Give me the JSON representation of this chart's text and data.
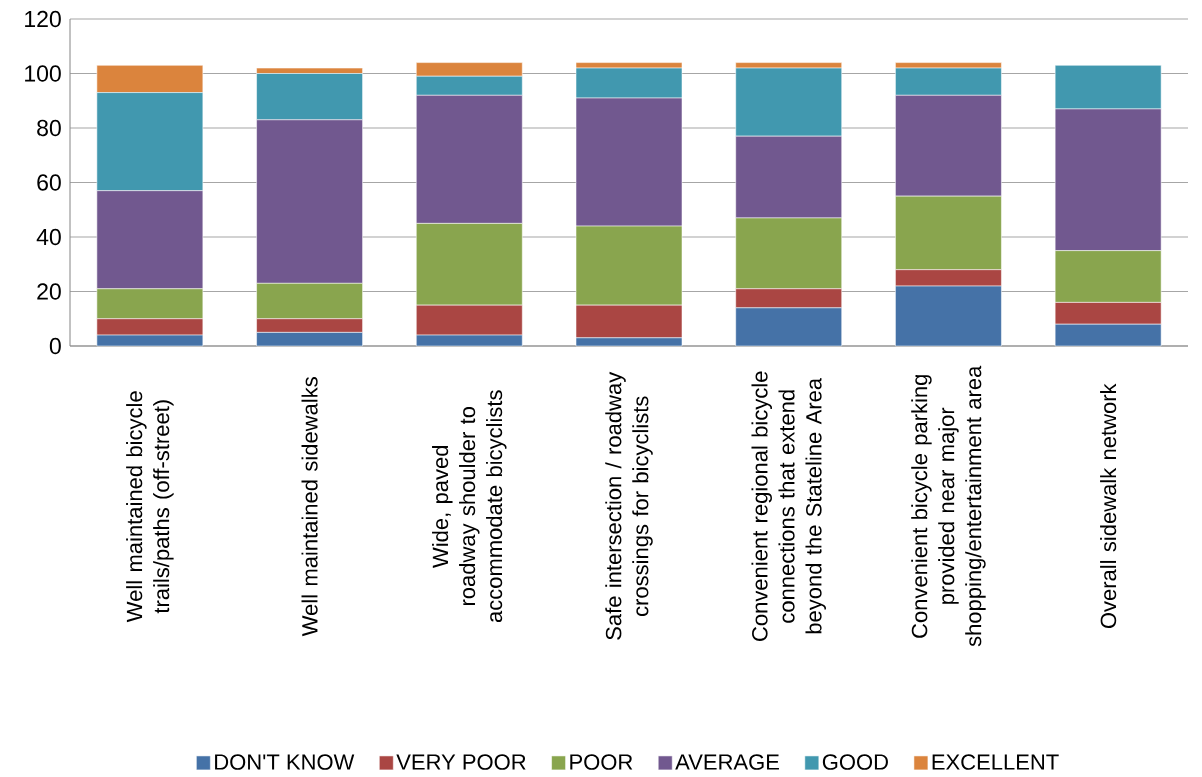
{
  "chart_data": {
    "type": "bar",
    "stacked": true,
    "categories": [
      "Well maintained bicycle trails/paths (off-street)",
      "Well maintained sidewalks",
      "Wide, paved roadway shoulder to accommodate bicyclists",
      "Safe intersection / roadway crossings for bicyclists",
      "Convenient regional bicycle connections that extend beyond the Stateline Area",
      "Convenient bicycle parking provided near major shopping/entertainment area",
      "Overall sidewalk network"
    ],
    "series": [
      {
        "name": "DON'T KNOW",
        "color": "#4572a7",
        "values": [
          4,
          5,
          4,
          3,
          14,
          22,
          8
        ]
      },
      {
        "name": "VERY POOR",
        "color": "#aa4643",
        "values": [
          6,
          5,
          11,
          12,
          7,
          6,
          8
        ]
      },
      {
        "name": "POOR",
        "color": "#89a54e",
        "values": [
          11,
          13,
          30,
          29,
          26,
          27,
          19
        ]
      },
      {
        "name": "AVERAGE",
        "color": "#71588f",
        "values": [
          36,
          60,
          47,
          47,
          30,
          37,
          52
        ]
      },
      {
        "name": "GOOD",
        "color": "#4198af",
        "values": [
          36,
          17,
          7,
          11,
          25,
          10,
          16
        ]
      },
      {
        "name": "EXCELLENT",
        "color": "#db843d",
        "values": [
          10,
          2,
          5,
          2,
          2,
          2,
          0
        ]
      }
    ],
    "ylim": [
      0,
      120
    ],
    "yticks": [
      0,
      20,
      40,
      60,
      80,
      100,
      120
    ],
    "grid": "y",
    "legend": "bottom"
  }
}
